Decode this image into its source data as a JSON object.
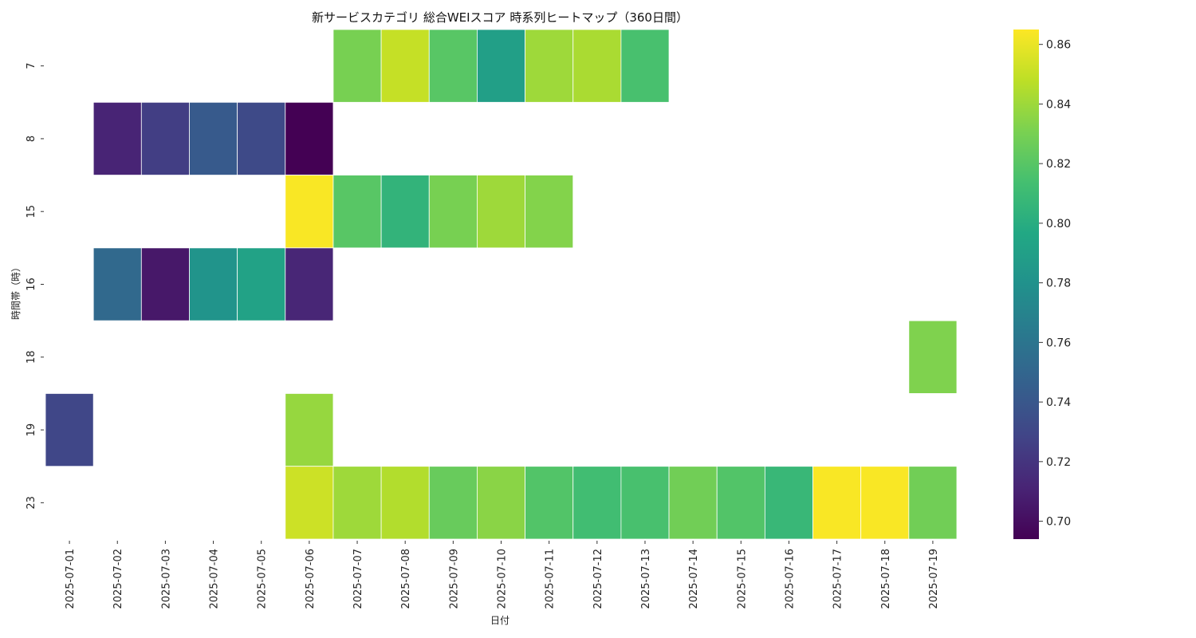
{
  "chart_data": {
    "type": "heatmap",
    "title": "新サービスカテゴリ 総合WEIスコア 時系列ヒートマップ（360日間）",
    "xlabel": "日付",
    "ylabel": "時間帯（時）",
    "x_categories": [
      "2025-07-01",
      "2025-07-02",
      "2025-07-03",
      "2025-07-04",
      "2025-07-05",
      "2025-07-06",
      "2025-07-07",
      "2025-07-08",
      "2025-07-09",
      "2025-07-10",
      "2025-07-11",
      "2025-07-12",
      "2025-07-13",
      "2025-07-14",
      "2025-07-15",
      "2025-07-16",
      "2025-07-17",
      "2025-07-18",
      "2025-07-19"
    ],
    "y_categories": [
      "7",
      "8",
      "15",
      "16",
      "18",
      "19",
      "23"
    ],
    "values": [
      [
        null,
        null,
        null,
        null,
        null,
        null,
        0.83,
        0.85,
        0.82,
        0.79,
        0.84,
        0.843,
        0.815,
        null,
        null,
        null,
        null,
        null,
        null
      ],
      [
        null,
        0.711,
        0.725,
        0.742,
        0.732,
        0.694,
        null,
        null,
        null,
        null,
        null,
        null,
        null,
        null,
        null,
        null,
        null,
        null,
        null
      ],
      [
        null,
        null,
        null,
        null,
        null,
        0.864,
        0.82,
        0.805,
        0.83,
        0.84,
        0.833,
        null,
        null,
        null,
        null,
        null,
        null,
        null,
        null
      ],
      [
        null,
        0.752,
        0.705,
        0.782,
        0.792,
        0.712,
        null,
        null,
        null,
        null,
        null,
        null,
        null,
        null,
        null,
        null,
        null,
        null,
        null
      ],
      [
        null,
        null,
        null,
        null,
        null,
        null,
        null,
        null,
        null,
        null,
        null,
        null,
        null,
        null,
        null,
        null,
        null,
        null,
        0.832
      ],
      [
        0.73,
        null,
        null,
        null,
        null,
        0.838,
        null,
        null,
        null,
        null,
        null,
        null,
        null,
        null,
        null,
        null,
        null,
        null,
        null
      ],
      [
        null,
        null,
        null,
        null,
        null,
        0.852,
        0.84,
        0.845,
        0.825,
        0.835,
        0.818,
        0.812,
        0.815,
        0.828,
        0.818,
        0.808,
        0.864,
        0.864,
        0.828
      ]
    ],
    "colorbar": {
      "colormap": "viridis",
      "vmin": 0.694,
      "vmax": 0.865,
      "ticks": [
        0.7,
        0.72,
        0.74,
        0.76,
        0.78,
        0.8,
        0.82,
        0.84,
        0.86
      ],
      "tick_labels": [
        "0.70",
        "0.72",
        "0.74",
        "0.76",
        "0.78",
        "0.80",
        "0.82",
        "0.84",
        "0.86"
      ]
    },
    "grid": false,
    "cell_border_color": "#ffffff"
  }
}
